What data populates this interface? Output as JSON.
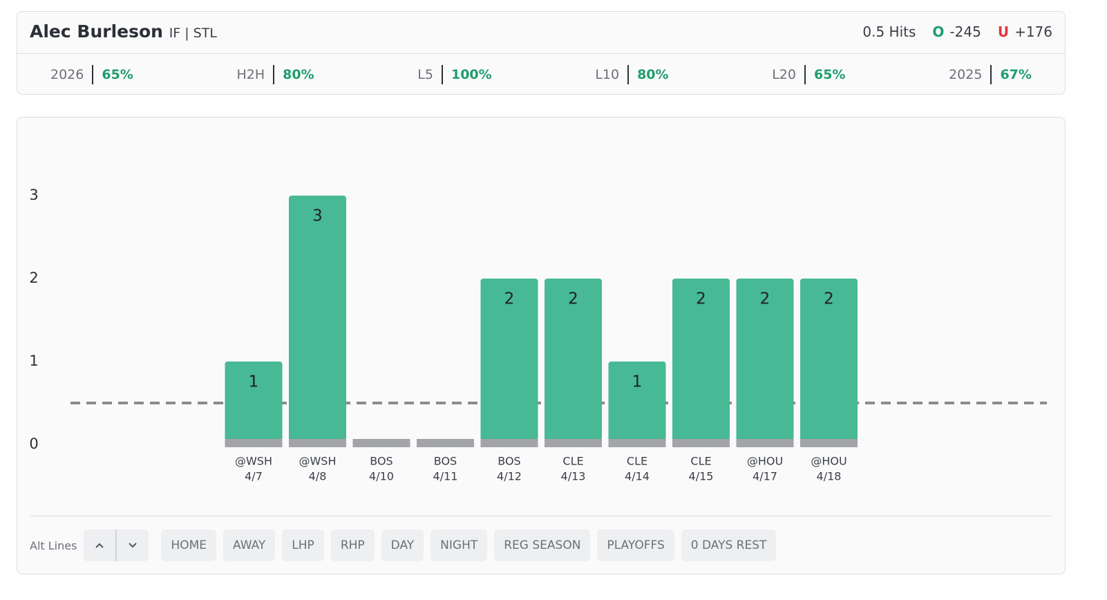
{
  "header": {
    "player": "Alec Burleson",
    "position_team": "IF | STL",
    "line": "0.5 Hits",
    "over_label": "O",
    "over": "-245",
    "under_label": "U",
    "under": "+176"
  },
  "stats": [
    {
      "label": "2026",
      "value": "65%"
    },
    {
      "label": "H2H",
      "value": "80%"
    },
    {
      "label": "L5",
      "value": "100%"
    },
    {
      "label": "L10",
      "value": "80%"
    },
    {
      "label": "L20",
      "value": "65%"
    },
    {
      "label": "2025",
      "value": "67%"
    }
  ],
  "chart_data": {
    "type": "bar",
    "categories": [
      "@WSH",
      "@WSH",
      "BOS",
      "BOS",
      "BOS",
      "CLE",
      "CLE",
      "CLE",
      "@HOU",
      "@HOU"
    ],
    "dates": [
      "4/7",
      "4/8",
      "4/10",
      "4/11",
      "4/12",
      "4/13",
      "4/14",
      "4/15",
      "4/17",
      "4/18"
    ],
    "values": [
      1,
      3,
      0,
      0,
      2,
      2,
      1,
      2,
      2,
      2
    ],
    "color": "#47b994",
    "ylim": [
      0,
      3
    ],
    "yticks": [
      0,
      1,
      2,
      3
    ],
    "threshold": 0.5
  },
  "controls": {
    "alt_lines": "Alt Lines",
    "filters": [
      "HOME",
      "AWAY",
      "LHP",
      "RHP",
      "DAY",
      "NIGHT",
      "REG SEASON",
      "PLAYOFFS",
      "0 DAYS REST"
    ]
  }
}
